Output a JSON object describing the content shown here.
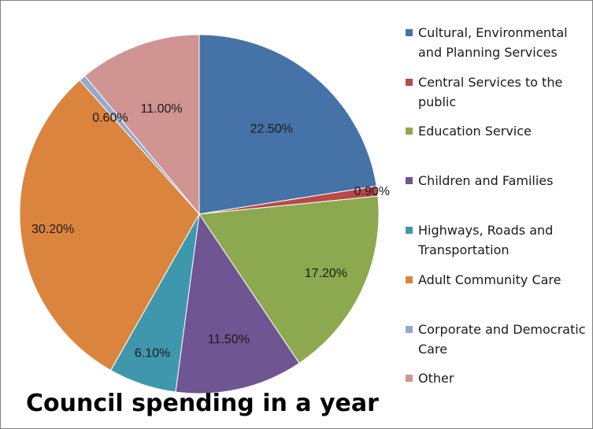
{
  "chart_data": {
    "type": "pie",
    "title": "Council spending in a year",
    "slices": [
      {
        "name": "Cultural, Environmental and Planning Services",
        "value": 22.5,
        "label": "22.50%",
        "color": "#4572A7"
      },
      {
        "name": "Central Services to the public",
        "value": 0.9,
        "label": "0.90%",
        "color": "#B94A48"
      },
      {
        "name": "Education Service",
        "value": 17.2,
        "label": "17.20%",
        "color": "#8CA94F"
      },
      {
        "name": "Children and Families",
        "value": 11.5,
        "label": "11.50%",
        "color": "#6F5591"
      },
      {
        "name": "Highways, Roads and Transportation",
        "value": 6.1,
        "label": "6.10%",
        "color": "#3F97AD"
      },
      {
        "name": "Adult Community Care",
        "value": 30.2,
        "label": "30.20%",
        "color": "#DB843D"
      },
      {
        "name": "Corporate and Democratic Care",
        "value": 0.6,
        "label": "0.60%",
        "color": "#93A9CF"
      },
      {
        "name": "Other",
        "value": 11.0,
        "label": "11.00%",
        "color": "#D09493"
      }
    ],
    "legend": {
      "position": "right"
    }
  }
}
